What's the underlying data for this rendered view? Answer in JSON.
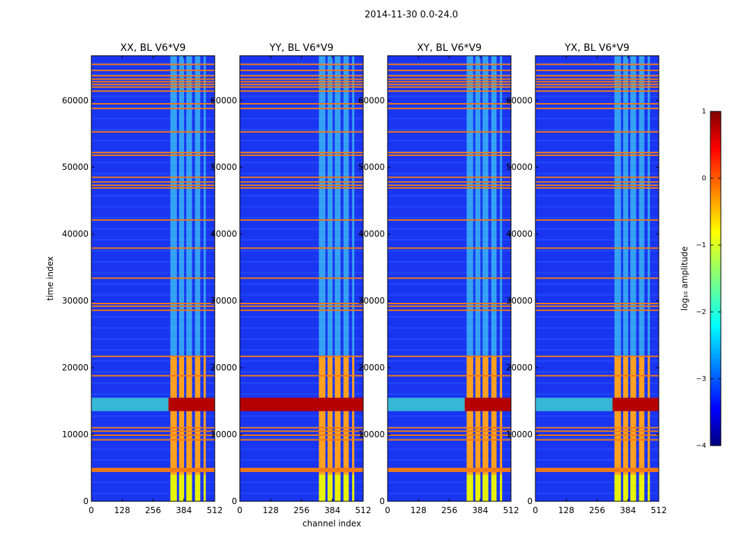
{
  "figure_title": "2014-11-30 0.0-24.0",
  "chart_data": {
    "type": "heatmap",
    "title": "2014-11-30 0.0-24.0",
    "xlabel": "channel index",
    "ylabel": "time index",
    "xlim": [
      0,
      512
    ],
    "ylim": [
      0,
      66700
    ],
    "x_ticks": [
      0,
      128,
      256,
      384,
      512
    ],
    "y_ticks": [
      0,
      10000,
      20000,
      30000,
      40000,
      50000,
      60000
    ],
    "panels": [
      {
        "title": "XX, BL V6*V9",
        "pol": "XX"
      },
      {
        "title": "YY, BL V6*V9",
        "pol": "YY"
      },
      {
        "title": "XY, BL V6*V9",
        "pol": "XY"
      },
      {
        "title": "YX, BL V6*V9",
        "pol": "YX"
      }
    ],
    "features": {
      "rfi_channel_bands": [
        [
          328,
          355
        ],
        [
          364,
          385
        ],
        [
          394,
          418
        ],
        [
          430,
          452
        ],
        [
          466,
          475
        ]
      ],
      "flagged_time_rows": [
        4700,
        9200,
        9900,
        10500,
        11000,
        18800,
        21700,
        28600,
        29200,
        29600,
        33400,
        37900,
        42100,
        46900,
        47300,
        47800,
        48500,
        51800,
        52200,
        55300,
        58800,
        59500,
        61400,
        62000,
        62400,
        62800,
        63200,
        63700,
        64500,
        65400
      ],
      "hot_time_band": [
        13500,
        15500
      ],
      "strong_rfi_time_range": [
        4000,
        21700
      ]
    },
    "colorbar": {
      "label": "log₁₀ amplitude",
      "range": [
        -4,
        1
      ],
      "ticks": [
        1,
        0,
        -1,
        -2,
        -3,
        -4
      ],
      "tick_labels": [
        "1",
        "0",
        "−1",
        "−2",
        "−3",
        "−4"
      ],
      "colormap": "jet"
    }
  }
}
